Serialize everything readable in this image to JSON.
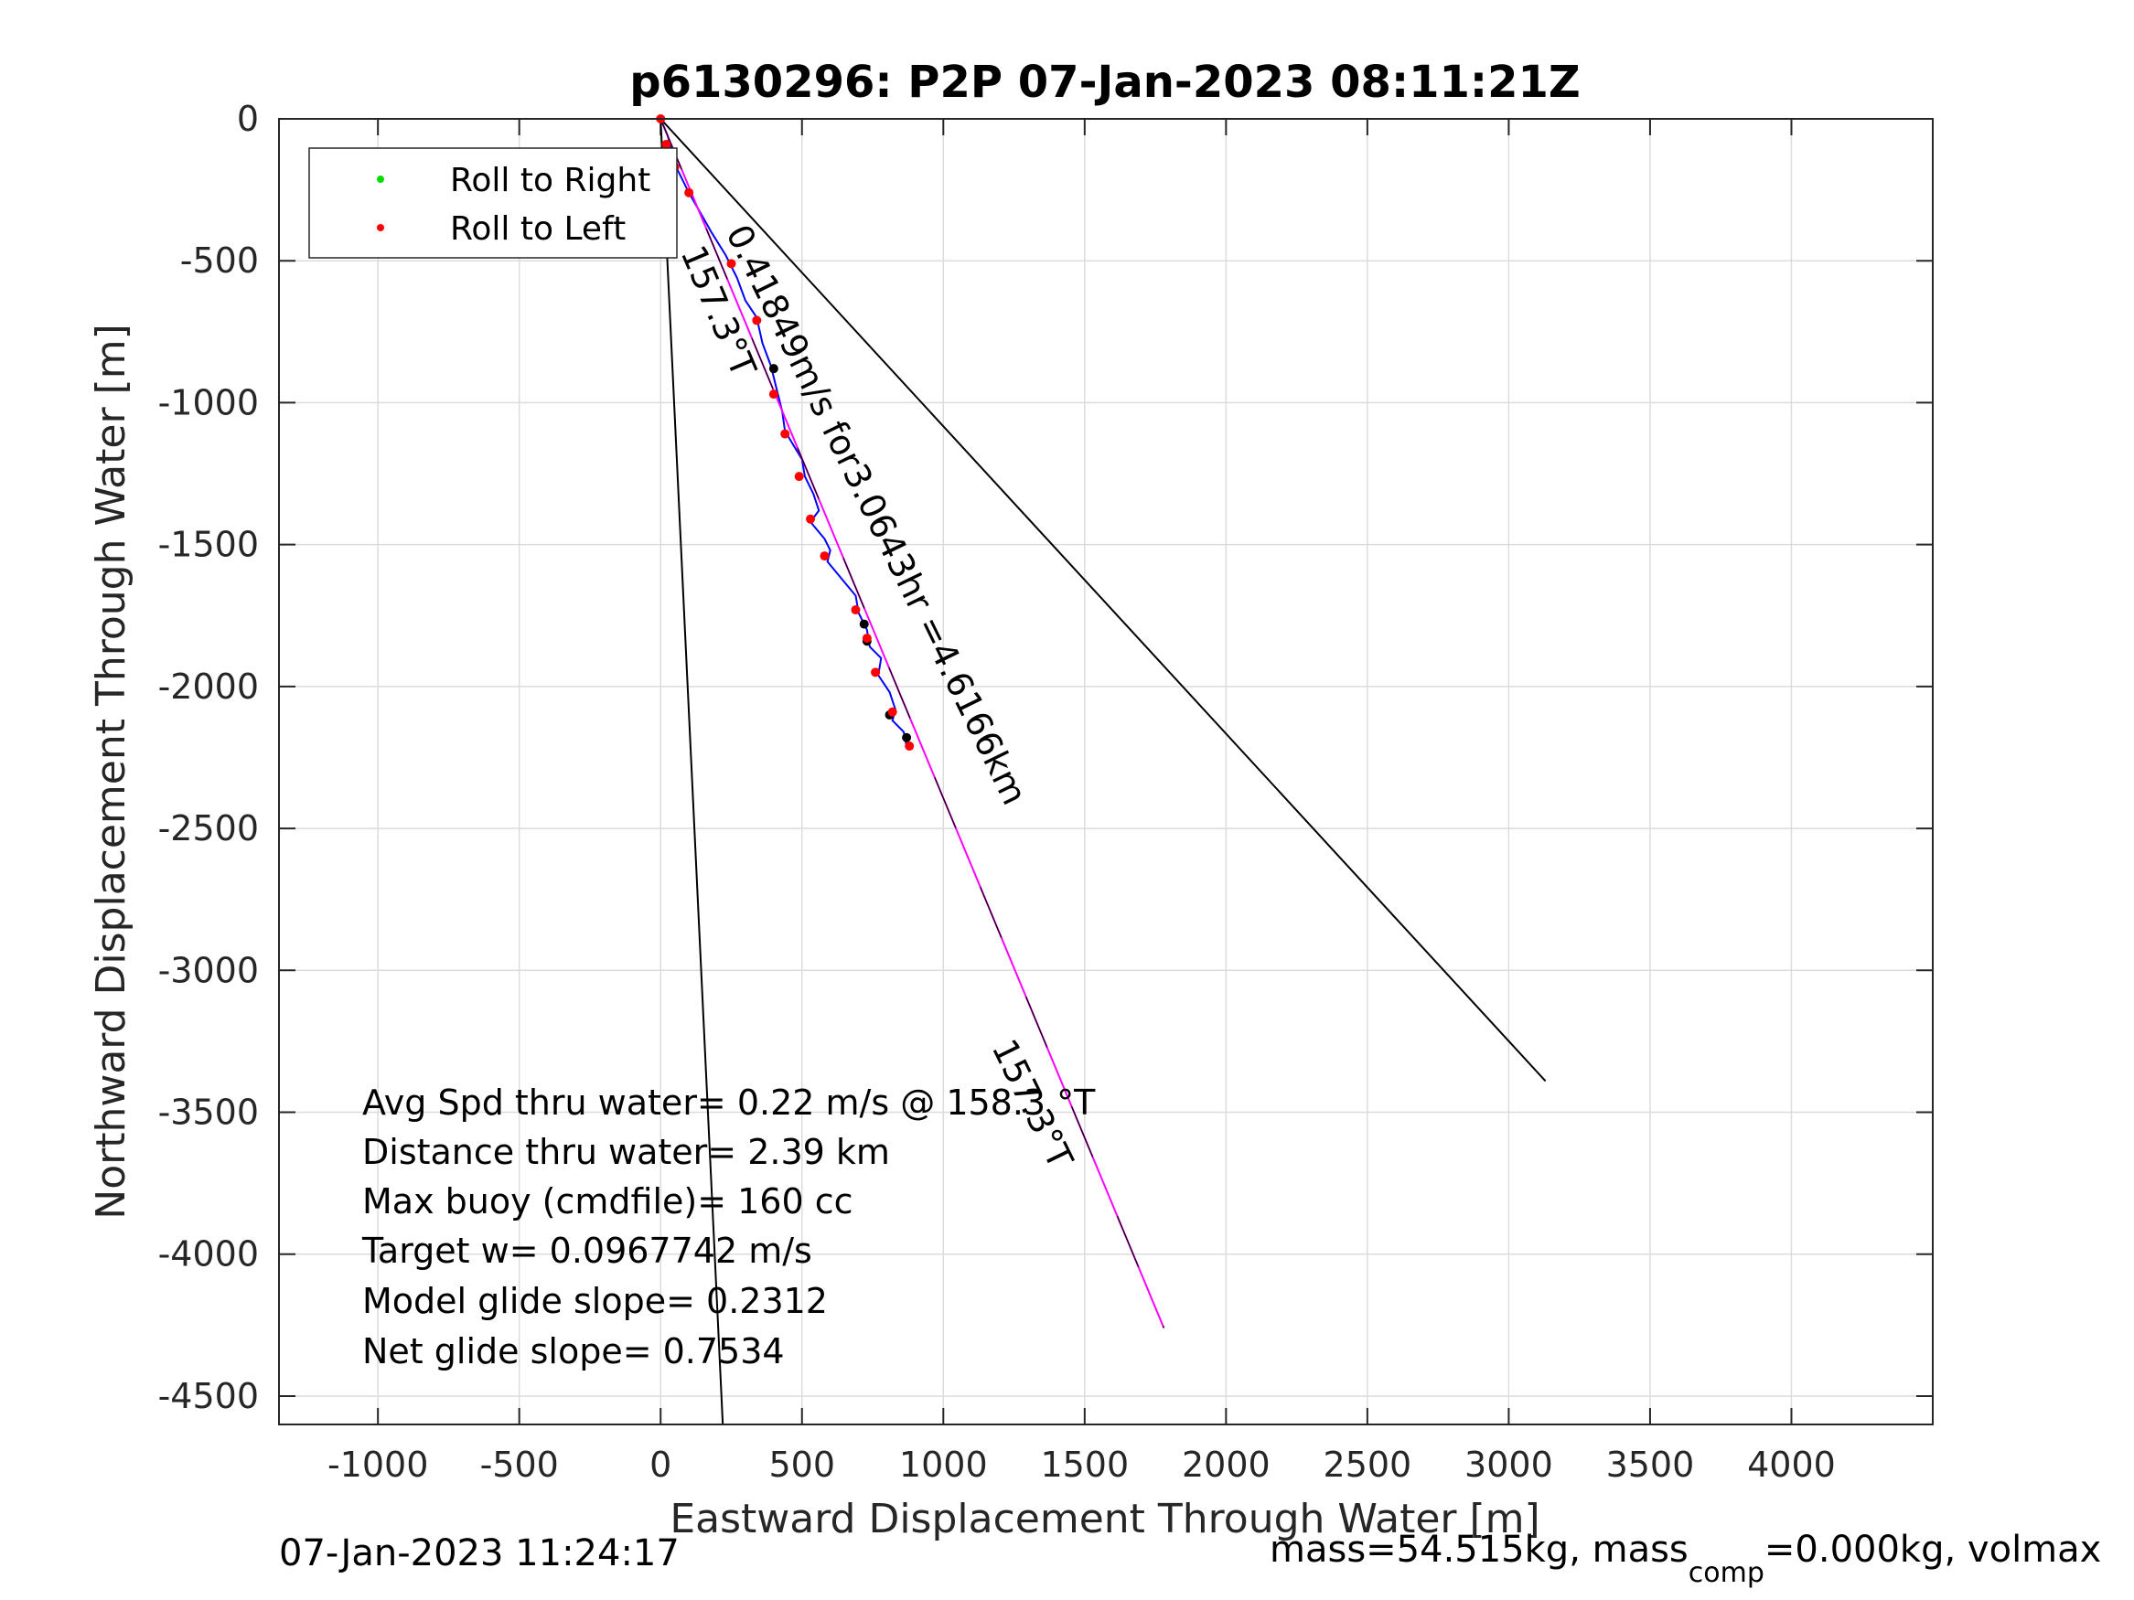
{
  "chart_data": {
    "type": "line",
    "title": "p6130296: P2P 07-Jan-2023 08:11:21Z",
    "xlabel": "Eastward Displacement Through Water [m]",
    "ylabel": "Northward Displacement Through Water [m]",
    "xlim": [
      -1350,
      4500
    ],
    "ylim": [
      -4600,
      0
    ],
    "xticks": [
      -1000,
      -500,
      0,
      500,
      1000,
      1500,
      2000,
      2500,
      3000,
      3500,
      4000
    ],
    "yticks": [
      0,
      -500,
      -1000,
      -1500,
      -2000,
      -2500,
      -3000,
      -3500,
      -4000,
      -4500
    ],
    "xtick_labels": [
      "-1000",
      "-500",
      "0",
      "500",
      "1000",
      "1500",
      "2000",
      "2500",
      "3000",
      "3500",
      "4000"
    ],
    "ytick_labels": [
      "0",
      "-500",
      "-1000",
      "-1500",
      "-2000",
      "-2500",
      "-3000",
      "-3500",
      "-4000",
      "-4500"
    ],
    "grid": true,
    "legend_position": "top-left",
    "legend": [
      {
        "label": "Roll to Right",
        "color": "#00dd00"
      },
      {
        "label": "Roll to Left",
        "color": "#ff0000"
      }
    ],
    "series": [
      {
        "color": "#0000ff",
        "points": [
          [
            0,
            0
          ],
          [
            25,
            -60
          ],
          [
            40,
            -120
          ],
          [
            60,
            -180
          ],
          [
            100,
            -260
          ],
          [
            140,
            -330
          ],
          [
            180,
            -400
          ],
          [
            230,
            -480
          ],
          [
            270,
            -560
          ],
          [
            300,
            -640
          ],
          [
            340,
            -700
          ],
          [
            360,
            -790
          ],
          [
            390,
            -870
          ],
          [
            410,
            -950
          ],
          [
            430,
            -1030
          ],
          [
            440,
            -1100
          ],
          [
            470,
            -1150
          ],
          [
            500,
            -1200
          ],
          [
            510,
            -1260
          ],
          [
            540,
            -1320
          ],
          [
            560,
            -1380
          ],
          [
            530,
            -1420
          ],
          [
            580,
            -1480
          ],
          [
            600,
            -1520
          ],
          [
            590,
            -1560
          ],
          [
            640,
            -1620
          ],
          [
            690,
            -1680
          ],
          [
            700,
            -1740
          ],
          [
            730,
            -1800
          ],
          [
            740,
            -1860
          ],
          [
            780,
            -1900
          ],
          [
            770,
            -1960
          ],
          [
            810,
            -2020
          ],
          [
            830,
            -2080
          ],
          [
            820,
            -2120
          ],
          [
            860,
            -2160
          ],
          [
            870,
            -2210
          ]
        ]
      },
      {
        "color": "#ff00ff",
        "points": [
          [
            0,
            0
          ],
          [
            1780,
            -4260
          ]
        ]
      },
      {
        "color": "#000000",
        "points": [
          [
            0,
            0
          ],
          [
            220,
            -4600
          ]
        ]
      },
      {
        "color": "#000000",
        "points": [
          [
            0,
            0
          ],
          [
            3130,
            -3390
          ]
        ]
      },
      {
        "color": "#000000",
        "points": [
          [
            0,
            0
          ],
          [
            1780,
            -4260
          ]
        ]
      }
    ],
    "roll_left_points": [
      [
        0,
        0
      ],
      [
        20,
        -90
      ],
      [
        40,
        -130
      ],
      [
        50,
        -170
      ],
      [
        100,
        -260
      ],
      [
        250,
        -510
      ],
      [
        340,
        -710
      ],
      [
        400,
        -970
      ],
      [
        440,
        -1110
      ],
      [
        490,
        -1260
      ],
      [
        530,
        -1410
      ],
      [
        580,
        -1540
      ],
      [
        690,
        -1730
      ],
      [
        730,
        -1830
      ],
      [
        760,
        -1950
      ],
      [
        820,
        -2090
      ],
      [
        880,
        -2210
      ]
    ],
    "roll_right_points": [],
    "black_points": [
      [
        400,
        -880
      ],
      [
        720,
        -1780
      ],
      [
        730,
        -1840
      ],
      [
        810,
        -2100
      ],
      [
        870,
        -2180
      ]
    ],
    "line_labels": [
      {
        "text": "157.3°T",
        "x": 70,
        "y": -470,
        "angle": 67
      },
      {
        "text": "0.41849m/s for3.0643hr =4.6166km",
        "x": 230,
        "y": -400,
        "angle": 64
      },
      {
        "text": "157.3°T",
        "x": 1170,
        "y": -3270,
        "angle": 64
      }
    ],
    "annotations": [
      "Avg Spd thru water=  0.22 m/s @ 158.3 °T",
      "Distance thru water=  2.39 km",
      "Max buoy (cmdfile)= 160 cc",
      "Target w= 0.0967742 m/s",
      "Model glide slope= 0.2312",
      "Net glide slope= 0.7534"
    ]
  },
  "footer": {
    "timestamp": "07-Jan-2023 11:24:17",
    "mass_prefix": "mass=54.515kg, mass",
    "mass_sub": "comp",
    "mass_suffix": "=0.000kg, volmax"
  }
}
